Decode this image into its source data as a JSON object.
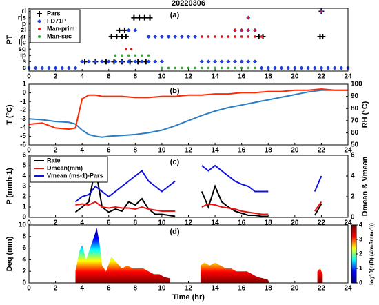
{
  "chart_data": [
    {
      "type": "scatter",
      "title": "20220306",
      "panel_label": "(a)",
      "ylabel": "PT",
      "xlim": [
        0,
        24
      ],
      "xticks": [
        0,
        2,
        4,
        6,
        8,
        10,
        12,
        14,
        16,
        18,
        20,
        22,
        24
      ],
      "ylim": [
        -0.5,
        9.5
      ],
      "yticks": [
        {
          "value": 0,
          "label": "c"
        },
        {
          "value": 1,
          "label": "s"
        },
        {
          "value": 2,
          "label": "ip"
        },
        {
          "value": 3,
          "label": "sg"
        },
        {
          "value": 4,
          "label": "l|c"
        },
        {
          "value": 5,
          "label": "zr"
        },
        {
          "value": 6,
          "label": "zl"
        },
        {
          "value": 7,
          "label": "p"
        },
        {
          "value": 8,
          "label": "r|s"
        },
        {
          "value": 9,
          "label": "rl"
        }
      ],
      "legend": "upper left",
      "series": [
        {
          "name": "Pars",
          "color": "#000000",
          "marker": "plus",
          "x": [
            7.9,
            8.3,
            8.7,
            9.1,
            6.2,
            6.6,
            7.0,
            7.3,
            6.8,
            7.2,
            4.2,
            5.0,
            5.8,
            6.4,
            7.0,
            7.6,
            8.2,
            8.8,
            17.3,
            17.6,
            21.9,
            22.1,
            22.0
          ],
          "y": [
            8,
            8,
            8,
            8,
            5,
            5,
            5,
            5,
            6,
            6,
            1,
            1,
            1,
            1,
            1,
            1,
            1,
            1,
            5,
            5,
            5,
            5,
            9
          ]
        },
        {
          "name": "FD71P",
          "color": "#1f3fe0",
          "marker": "diamond",
          "x": [
            0,
            0.5,
            1,
            1.5,
            2,
            2.5,
            3,
            3.5,
            4,
            4.5,
            5,
            5.5,
            6,
            6.5,
            7,
            7.5,
            8,
            8.5,
            9,
            9.5,
            10,
            9,
            9.5,
            10,
            10.5,
            11,
            11.5,
            12,
            12.5,
            13,
            13.5,
            14,
            14.5,
            15,
            15.5,
            16,
            16.5,
            17,
            15.5,
            16,
            16.5,
            17,
            17.5,
            18,
            18.5,
            19,
            19.5,
            20,
            20.5,
            21,
            21.5,
            22,
            22.5,
            23,
            23.5,
            24,
            16.5,
            22,
            7.5,
            8
          ],
          "y": [
            0,
            0,
            0,
            0,
            0,
            0,
            0,
            0,
            1,
            1,
            1,
            1,
            1,
            1,
            1,
            1,
            1,
            1,
            1,
            1,
            1,
            5,
            5,
            5,
            5,
            5,
            5,
            5,
            5,
            1,
            1,
            1,
            1,
            1,
            1,
            1,
            1,
            1,
            6,
            6,
            6,
            6,
            0,
            0,
            0,
            0,
            0,
            0,
            0,
            0,
            0,
            0,
            0,
            0,
            0,
            0,
            8,
            9,
            6,
            6
          ]
        },
        {
          "name": "Man-prim",
          "color": "#e8161b",
          "marker": "dot",
          "x": [
            13,
            13.5,
            14,
            14.5,
            15,
            15.5,
            16,
            16.5,
            17,
            17.5,
            15.5,
            16,
            16.5,
            17,
            16.5,
            22,
            7.3,
            7.7
          ],
          "y": [
            5,
            5,
            5,
            5,
            5,
            5,
            5,
            5,
            5,
            5,
            6,
            6,
            6,
            6,
            8,
            9,
            3,
            3
          ]
        },
        {
          "name": "Man-sec",
          "color": "#22b022",
          "marker": "dot",
          "x": [
            10,
            10.5,
            11,
            11.5,
            12,
            12.5,
            13,
            13.5,
            14,
            14.5,
            15,
            15.5,
            16,
            16.5,
            17,
            6.5,
            7,
            7.5,
            8,
            8.5,
            9
          ],
          "y": [
            0,
            0,
            0,
            0,
            0,
            0,
            0,
            0,
            0,
            0,
            0,
            0,
            0,
            0,
            0,
            2,
            2,
            2,
            2,
            2,
            2
          ]
        }
      ]
    },
    {
      "type": "line",
      "panel_label": "(b)",
      "ylabel": "T (°C)",
      "y2label": "RH (°C)",
      "xlim": [
        0,
        24
      ],
      "xticks": [
        0,
        2,
        4,
        6,
        8,
        10,
        12,
        14,
        16,
        18,
        20,
        22,
        24
      ],
      "ylim": [
        -6,
        1
      ],
      "yticks": [
        -6,
        -5,
        -4,
        -3,
        -2,
        -1,
        0,
        1
      ],
      "y2lim": [
        50,
        100
      ],
      "y2ticks": [
        50,
        60,
        70,
        80,
        90,
        100
      ],
      "x": [
        0,
        1,
        2,
        3,
        3.5,
        4,
        4.5,
        5,
        5.5,
        6,
        7,
        8,
        9,
        10,
        11,
        12,
        13,
        14,
        15,
        16,
        17,
        18,
        19,
        20,
        21,
        22,
        23,
        24
      ],
      "series": [
        {
          "name": "T",
          "color": "#2a7fc4",
          "values": [
            -3,
            -3.1,
            -3.3,
            -3.4,
            -3.6,
            -4.3,
            -4.8,
            -5,
            -5.1,
            -5,
            -4.9,
            -4.8,
            -4.6,
            -4.3,
            -3.8,
            -3.2,
            -2.6,
            -2.1,
            -1.7,
            -1.4,
            -1.1,
            -0.8,
            -0.5,
            -0.2,
            0.1,
            0.3,
            0.3,
            0.3
          ]
        },
        {
          "name": "RH",
          "color": "#ff2a00",
          "axis": "y2",
          "values": [
            67,
            68,
            64,
            63,
            64,
            88,
            91,
            91,
            90,
            90,
            90,
            89,
            89,
            90,
            90,
            91,
            91,
            92,
            92,
            93,
            93,
            94,
            94,
            95,
            95,
            96,
            95,
            95
          ]
        }
      ]
    },
    {
      "type": "line",
      "panel_label": "(c)",
      "ylabel": "P (mmh-1)",
      "y2label": "Dmean & Vmean",
      "xlim": [
        0,
        24
      ],
      "xticks": [
        0,
        2,
        4,
        6,
        8,
        10,
        12,
        14,
        16,
        18,
        20,
        22,
        24
      ],
      "ylim": [
        0,
        6
      ],
      "yticks": [
        0,
        1,
        2,
        3,
        4,
        5,
        6
      ],
      "y2lim": [
        0,
        6
      ],
      "y2ticks": [
        0,
        2,
        4,
        6
      ],
      "legend": "upper left",
      "x": [
        3.5,
        4,
        4.5,
        5,
        5.5,
        6,
        6.5,
        7,
        7.5,
        8,
        8.5,
        9,
        9.5,
        10,
        10.5,
        11,
        11.5,
        13,
        13.5,
        14,
        14.5,
        15,
        15.5,
        16,
        16.5,
        17,
        17.5,
        18,
        18.5,
        21.5,
        22
      ],
      "series": [
        {
          "name": "Rate",
          "color": "#000000",
          "values": [
            0.5,
            1,
            1.5,
            4.8,
            1,
            0.5,
            0.8,
            0.6,
            1.5,
            1.2,
            1.8,
            0.8,
            0.3,
            0.3,
            0.2,
            0.1,
            null,
            2.5,
            1,
            3,
            1.5,
            1,
            0.6,
            0.4,
            0.2,
            0.2,
            0.1,
            0.1,
            null,
            0.2,
            1.3
          ]
        },
        {
          "name": "Dmean(mm)",
          "color": "#ee1111",
          "axis": "y2",
          "values": [
            1.2,
            1.3,
            1.2,
            1.5,
            1,
            0.9,
            1,
            0.9,
            0.9,
            0.8,
            1,
            0.8,
            0.7,
            0.6,
            0.6,
            0.6,
            null,
            1,
            1.3,
            1.2,
            1,
            0.9,
            0.8,
            0.6,
            0.5,
            0.4,
            0.3,
            0.3,
            null,
            0.6,
            1.5
          ]
        },
        {
          "name": "Vmean (ms-1)-Pars",
          "color": "#1010e0",
          "axis": "y2",
          "values": [
            1.5,
            2,
            2.2,
            3,
            2.5,
            2,
            2.5,
            3,
            3.5,
            4,
            4.5,
            3.5,
            3,
            2.5,
            3,
            3.5,
            null,
            5,
            4.5,
            5,
            4.5,
            4,
            3.5,
            3.2,
            3,
            2.5,
            2.5,
            2.5,
            null,
            2.5,
            4
          ]
        }
      ]
    },
    {
      "type": "area",
      "panel_label": "(d)",
      "ylabel": "Deq (mm)",
      "xlabel": "Time (hr)",
      "xlim": [
        0,
        24
      ],
      "xticks": [
        0,
        2,
        4,
        6,
        8,
        10,
        12,
        14,
        16,
        18,
        20,
        22,
        24
      ],
      "ylim": [
        0,
        10
      ],
      "yticks": [
        0,
        2,
        4,
        6,
        8,
        10
      ],
      "x": [
        3.5,
        3.8,
        4,
        4.3,
        4.6,
        4.9,
        5.1,
        5.3,
        5.5,
        5.8,
        6.2,
        6.6,
        7,
        7.4,
        7.8,
        8.2,
        8.6,
        9,
        9.4,
        9.8,
        10.2,
        10.6,
        11.5,
        12.9,
        13.2,
        13.6,
        14,
        14.4,
        14.8,
        15.2,
        15.6,
        16,
        16.4,
        16.8,
        17.2,
        17.6,
        18,
        19,
        21.7,
        21.9,
        22.1
      ],
      "values": [
        2,
        5.5,
        6.5,
        4,
        6,
        8,
        9.5,
        7,
        3,
        2,
        4.5,
        3.5,
        2.5,
        3,
        2.5,
        2.5,
        2.5,
        2,
        1.5,
        1.5,
        1,
        0.8,
        null,
        3,
        3.5,
        3,
        3.5,
        3,
        2.5,
        2.5,
        2,
        2,
        2,
        1.5,
        1,
        0.8,
        0.5,
        null,
        2,
        2.5,
        1.5
      ],
      "colormap": [
        "#00008f",
        "#0000ff",
        "#00ffff",
        "#ffff00",
        "#ff0000",
        "#800000"
      ],
      "clim": [
        0,
        4
      ],
      "cticks": [
        0,
        1,
        2,
        3,
        4
      ],
      "clabel": "log10(n(D) (#m-3mm-1))"
    }
  ]
}
